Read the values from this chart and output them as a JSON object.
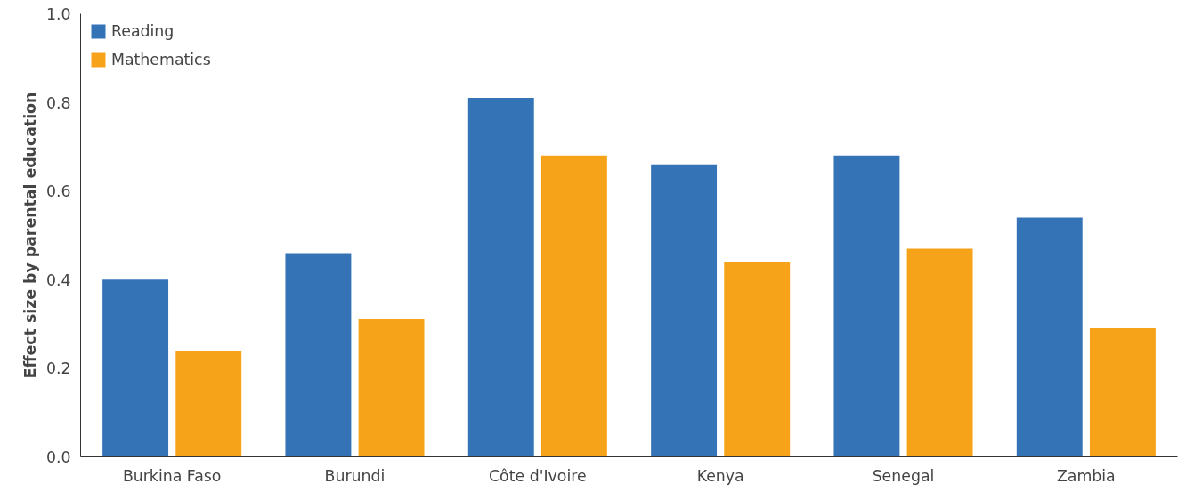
{
  "chart_data": {
    "type": "bar",
    "ylabel": "Effect size by parental education",
    "categories": [
      "Burkina Faso",
      "Burundi",
      "Côte d'Ivoire",
      "Kenya",
      "Senegal",
      "Zambia"
    ],
    "series": [
      {
        "name": "Reading",
        "color": "#3473b6",
        "values": [
          0.4,
          0.46,
          0.81,
          0.66,
          0.68,
          0.54
        ]
      },
      {
        "name": "Mathematics",
        "color": "#f6a31a",
        "values": [
          0.24,
          0.31,
          0.68,
          0.44,
          0.47,
          0.29
        ]
      }
    ],
    "ylim": [
      0,
      1.0
    ],
    "yticks": [
      {
        "value": 0,
        "label": "0.0"
      },
      0.2,
      0.4,
      0.6,
      0.8,
      {
        "value": 1,
        "label": "1.0"
      }
    ],
    "grid": false,
    "legend": "top left"
  }
}
